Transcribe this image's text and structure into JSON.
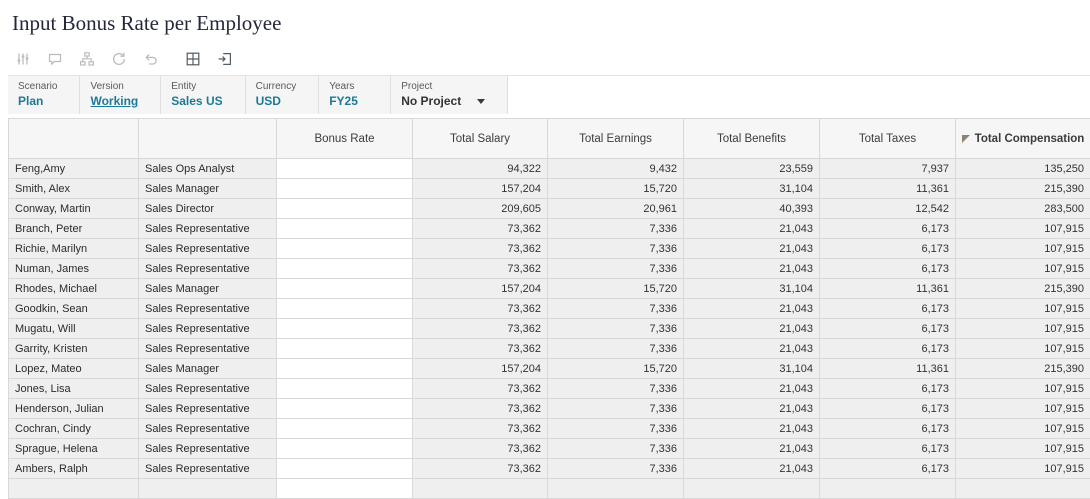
{
  "page": {
    "title": "Input Bonus Rate per Employee"
  },
  "colors": {
    "accent": "#1d7a96"
  },
  "toolbar": {
    "icons": [
      {
        "name": "adjust",
        "disabled": true
      },
      {
        "name": "comments",
        "disabled": true
      },
      {
        "name": "hierarchy",
        "disabled": true
      },
      {
        "name": "history",
        "disabled": true
      },
      {
        "name": "undo",
        "disabled": true
      },
      {
        "name": "grid",
        "disabled": false
      },
      {
        "name": "detach",
        "disabled": false
      }
    ]
  },
  "pov": {
    "items": [
      {
        "label": "Scenario",
        "value": "Plan"
      },
      {
        "label": "Version",
        "value": "Working"
      },
      {
        "label": "Entity",
        "value": "Sales US"
      },
      {
        "label": "Currency",
        "value": "USD"
      },
      {
        "label": "Years",
        "value": "FY25"
      },
      {
        "label": "Project",
        "value": "No Project"
      }
    ]
  },
  "grid": {
    "columns": [
      "Bonus Rate",
      "Total Salary",
      "Total Earnings",
      "Total Benefits",
      "Total Taxes",
      "Total Compensation"
    ],
    "rows": [
      {
        "name": "Feng,Amy",
        "title": "Sales Ops Analyst",
        "bonus": "",
        "values": [
          "94,322",
          "9,432",
          "23,559",
          "7,937",
          "135,250"
        ]
      },
      {
        "name": "Smith, Alex",
        "title": "Sales Manager",
        "bonus": "",
        "values": [
          "157,204",
          "15,720",
          "31,104",
          "11,361",
          "215,390"
        ]
      },
      {
        "name": "Conway, Martin",
        "title": "Sales Director",
        "bonus": "",
        "values": [
          "209,605",
          "20,961",
          "40,393",
          "12,542",
          "283,500"
        ]
      },
      {
        "name": "Branch, Peter",
        "title": "Sales Representative",
        "bonus": "",
        "values": [
          "73,362",
          "7,336",
          "21,043",
          "6,173",
          "107,915"
        ]
      },
      {
        "name": "Richie, Marilyn",
        "title": "Sales Representative",
        "bonus": "",
        "values": [
          "73,362",
          "7,336",
          "21,043",
          "6,173",
          "107,915"
        ]
      },
      {
        "name": "Numan, James",
        "title": "Sales Representative",
        "bonus": "",
        "values": [
          "73,362",
          "7,336",
          "21,043",
          "6,173",
          "107,915"
        ]
      },
      {
        "name": "Rhodes, Michael",
        "title": "Sales Manager",
        "bonus": "",
        "values": [
          "157,204",
          "15,720",
          "31,104",
          "11,361",
          "215,390"
        ]
      },
      {
        "name": "Goodkin, Sean",
        "title": "Sales Representative",
        "bonus": "",
        "values": [
          "73,362",
          "7,336",
          "21,043",
          "6,173",
          "107,915"
        ]
      },
      {
        "name": "Mugatu, Will",
        "title": "Sales Representative",
        "bonus": "",
        "values": [
          "73,362",
          "7,336",
          "21,043",
          "6,173",
          "107,915"
        ]
      },
      {
        "name": "Garrity, Kristen",
        "title": "Sales Representative",
        "bonus": "",
        "values": [
          "73,362",
          "7,336",
          "21,043",
          "6,173",
          "107,915"
        ]
      },
      {
        "name": "Lopez, Mateo",
        "title": "Sales Manager",
        "bonus": "",
        "values": [
          "157,204",
          "15,720",
          "31,104",
          "11,361",
          "215,390"
        ]
      },
      {
        "name": "Jones, Lisa",
        "title": "Sales Representative",
        "bonus": "",
        "values": [
          "73,362",
          "7,336",
          "21,043",
          "6,173",
          "107,915"
        ]
      },
      {
        "name": "Henderson, Julian",
        "title": "Sales Representative",
        "bonus": "",
        "values": [
          "73,362",
          "7,336",
          "21,043",
          "6,173",
          "107,915"
        ]
      },
      {
        "name": "Cochran, Cindy",
        "title": "Sales Representative",
        "bonus": "",
        "values": [
          "73,362",
          "7,336",
          "21,043",
          "6,173",
          "107,915"
        ]
      },
      {
        "name": "Sprague, Helena",
        "title": "Sales Representative",
        "bonus": "",
        "values": [
          "73,362",
          "7,336",
          "21,043",
          "6,173",
          "107,915"
        ]
      },
      {
        "name": "Ambers, Ralph",
        "title": "Sales Representative",
        "bonus": "",
        "values": [
          "73,362",
          "7,336",
          "21,043",
          "6,173",
          "107,915"
        ]
      }
    ]
  }
}
